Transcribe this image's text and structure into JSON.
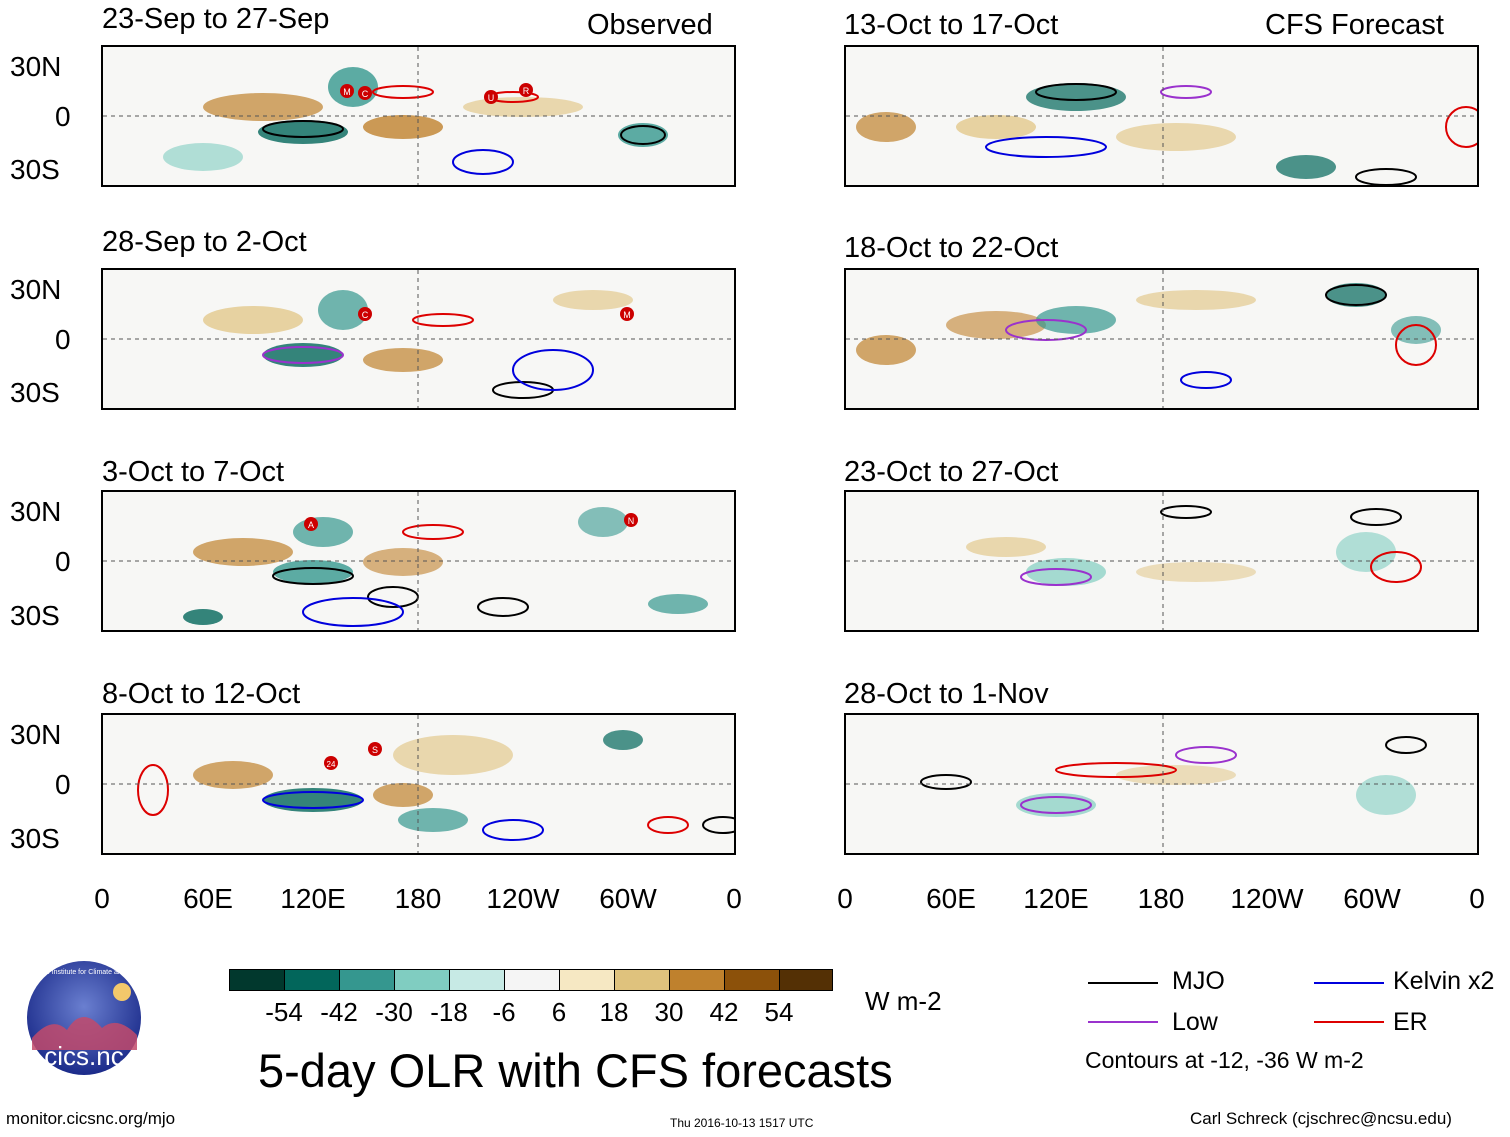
{
  "columns": {
    "observed_label": "Observed",
    "forecast_label": "CFS Forecast"
  },
  "panels": {
    "observed": [
      {
        "title": "23-Sep to 27-Sep"
      },
      {
        "title": "28-Sep to 2-Oct"
      },
      {
        "title": "3-Oct to 7-Oct"
      },
      {
        "title": "8-Oct to 12-Oct"
      }
    ],
    "forecast": [
      {
        "title": "13-Oct to 17-Oct"
      },
      {
        "title": "18-Oct to 22-Oct"
      },
      {
        "title": "23-Oct to 27-Oct"
      },
      {
        "title": "28-Oct to 1-Nov"
      }
    ]
  },
  "axes": {
    "lat_labels": [
      "30N",
      "0",
      "30S"
    ],
    "lon_labels": [
      "0",
      "60E",
      "120E",
      "180",
      "120W",
      "60W",
      "0"
    ]
  },
  "colorbar": {
    "ticks": [
      "-54",
      "-42",
      "-30",
      "-18",
      "-6",
      "6",
      "18",
      "30",
      "42",
      "54"
    ],
    "colors": [
      "#01382d",
      "#02665b",
      "#35978f",
      "#80cdc1",
      "#c7eae5",
      "#f5f5f5",
      "#f6e8c3",
      "#dfc27d",
      "#bf812d",
      "#8c510a",
      "#543005"
    ],
    "units": "W m-2"
  },
  "legend": {
    "items": [
      {
        "label": "MJO",
        "color": "#000000"
      },
      {
        "label": "Kelvin x2",
        "color": "#0000dd"
      },
      {
        "label": "Low",
        "color": "#9a32cd"
      },
      {
        "label": "ER",
        "color": "#dd0000"
      }
    ],
    "contours_note": "Contours at -12, -36 W m-2"
  },
  "storm_labels": {
    "panel1": [
      "M",
      "C",
      "U",
      "R"
    ],
    "panel2": [
      "C",
      "M"
    ],
    "panel3": [
      "A",
      "N"
    ],
    "panel4": [
      "24",
      "S"
    ]
  },
  "footer": {
    "main_title": "5-day OLR with CFS forecasts",
    "logo_text": "cics.nc",
    "logo_ring": "Cooperative Institute for Climate and Satellites",
    "url": "monitor.cicsnc.org/mjo",
    "timestamp": "Thu 2016-10-13 1517 UTC",
    "author": "Carl Schreck (cjschrec@ncsu.edu)"
  }
}
